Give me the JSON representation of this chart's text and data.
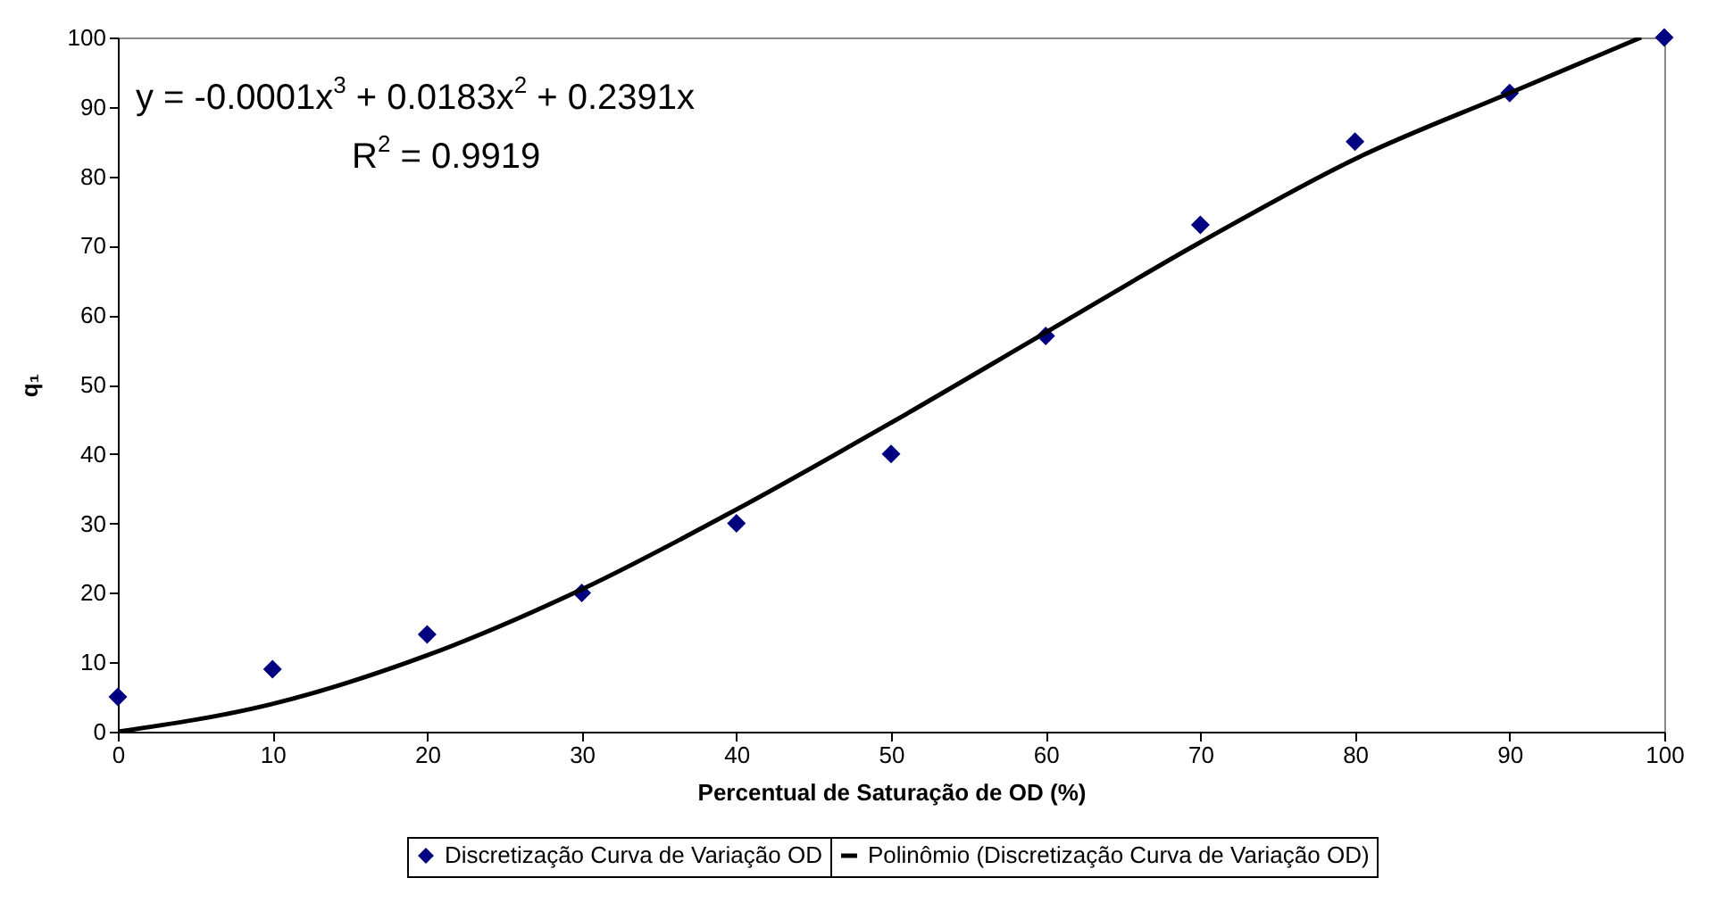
{
  "chart_data": {
    "type": "scatter",
    "xlabel": "Percentual de Saturação de OD (%)",
    "ylabel": "q₁",
    "xlim": [
      0,
      100
    ],
    "xticks": [
      0,
      10,
      20,
      30,
      40,
      50,
      60,
      70,
      80,
      90,
      100
    ],
    "ylim": [
      0,
      100
    ],
    "yticks": [
      0,
      10,
      20,
      30,
      40,
      50,
      60,
      70,
      80,
      90,
      100
    ],
    "grid": false,
    "legend": "bottom",
    "annotations": [
      "y = -0.0001x$^{3}$ + 0.0183x$^{2}$ + 0.2391x",
      "R$^{2}$ = 0.9919"
    ],
    "series": [
      {
        "name": "Discretização Curva de Variação OD",
        "color": "#000080",
        "marker": "diamond",
        "x": [
          0,
          10,
          20,
          30,
          40,
          50,
          60,
          70,
          80,
          90,
          100
        ],
        "values": [
          5,
          9,
          14,
          20,
          30,
          40,
          57,
          73,
          85,
          92,
          100
        ]
      },
      {
        "name": "Polinômio (Discretização Curva de Variação OD)",
        "type": "line",
        "color": "#000000",
        "marker": "none",
        "line_style": "solid",
        "x": [
          0,
          10,
          20,
          30,
          40,
          50,
          60,
          70,
          80,
          90,
          98.5
        ],
        "values": [
          0,
          4,
          11,
          20.5,
          32,
          44.5,
          57.5,
          70.5,
          82.5,
          92,
          100
        ]
      }
    ]
  }
}
